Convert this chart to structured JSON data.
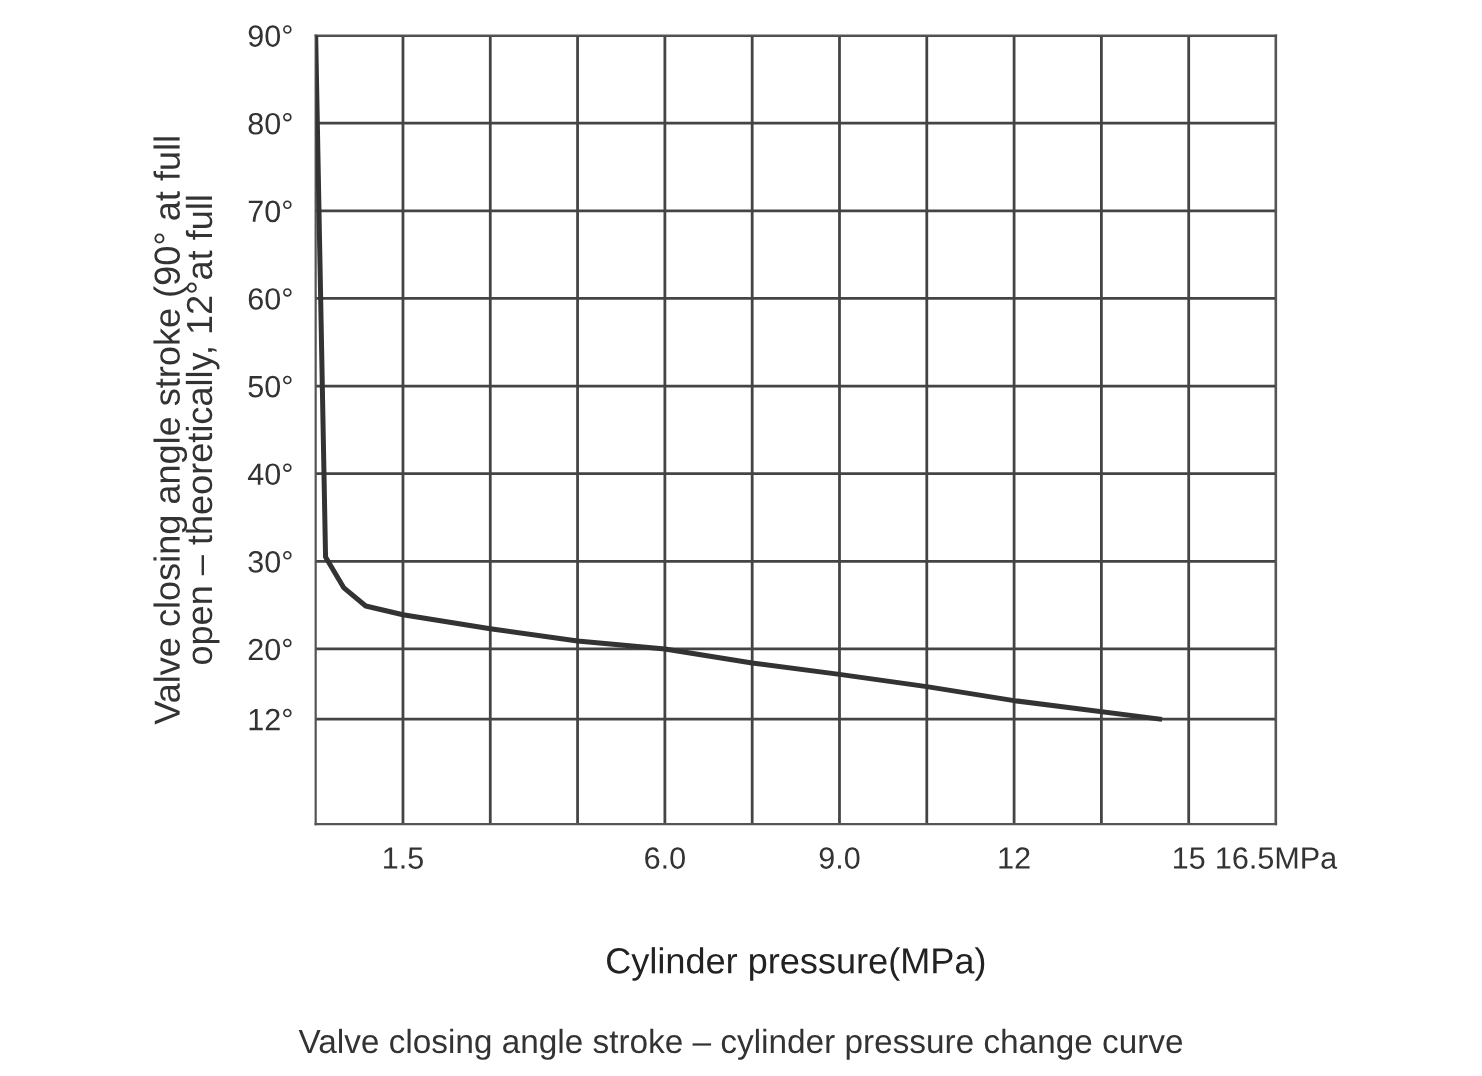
{
  "chart_data": {
    "type": "line",
    "xlabel": "Cylinder pressure(MPa)",
    "ylabel": "Valve closing angle stroke (90° at full\nopen – theoretically, 12°at full",
    "annotations": [
      "Valve closing angle stroke – cylinder pressure change curve"
    ],
    "x": [
      0,
      0.17,
      0.48,
      0.86,
      1.5,
      3.0,
      4.5,
      6.0,
      7.5,
      9.0,
      10.5,
      12.0,
      14.5
    ],
    "series": [
      {
        "color": "#333333",
        "values": [
          90,
          30.5,
          27,
          24.9,
          23.9,
          22.3,
          20.9,
          20,
          18.4,
          17.1,
          15.7,
          14.1,
          12
        ]
      }
    ],
    "xlim": [
      0,
      16.5
    ],
    "xticks": [
      {
        "value": 1.5,
        "label": "1.5"
      },
      {
        "value": 3,
        "label": null
      },
      {
        "value": 4.5,
        "label": null
      },
      {
        "value": 6,
        "label": "6.0"
      },
      {
        "value": 7.5,
        "label": null
      },
      {
        "value": 9,
        "label": "9.0"
      },
      {
        "value": 10.5,
        "label": null
      },
      {
        "value": 12,
        "label": "12"
      },
      {
        "value": 13.5,
        "label": null
      },
      {
        "value": 15,
        "label": "15"
      },
      {
        "value": 16.5,
        "label": "16.5MPa"
      }
    ],
    "ylim": [
      0,
      90
    ],
    "yticks": [
      {
        "value": 12,
        "label": "12°"
      },
      {
        "value": 20,
        "label": "20°"
      },
      {
        "value": 30,
        "label": "30°"
      },
      {
        "value": 40,
        "label": "40°"
      },
      {
        "value": 50,
        "label": "50°"
      },
      {
        "value": 60,
        "label": "60°"
      },
      {
        "value": 70,
        "label": "70°"
      },
      {
        "value": 80,
        "label": "80°"
      },
      {
        "value": 90,
        "label": "90°"
      }
    ],
    "grid": true,
    "marker": "none",
    "line_style": "solid"
  }
}
